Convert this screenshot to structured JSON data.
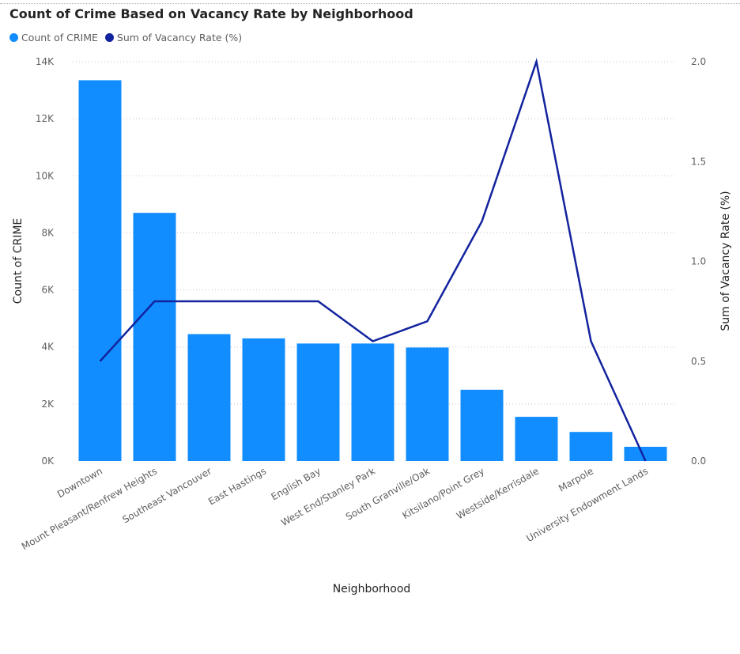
{
  "chart_data": {
    "type": "bar-line-combo",
    "title": "Count of Crime Based on Vacancy Rate by Neighborhood",
    "xlabel": "Neighborhood",
    "ylabel_left": "Count of CRIME",
    "ylabel_right": "Sum of Vacancy Rate (%)",
    "ylim_left": [
      0,
      14000
    ],
    "ylim_right": [
      0,
      2.0
    ],
    "yticks_left": [
      "0K",
      "2K",
      "4K",
      "6K",
      "8K",
      "10K",
      "12K",
      "14K"
    ],
    "yticks_left_values": [
      0,
      2000,
      4000,
      6000,
      8000,
      10000,
      12000,
      14000
    ],
    "yticks_right": [
      "0.0",
      "0.5",
      "1.0",
      "1.5",
      "2.0"
    ],
    "yticks_right_values": [
      0,
      0.5,
      1.0,
      1.5,
      2.0
    ],
    "grid": true,
    "legend_position": "top-left",
    "categories": [
      "Downtown",
      "Mount Pleasant/Renfrew Heights",
      "Southeast Vancouver",
      "East Hastings",
      "English Bay",
      "West End/Stanley Park",
      "South Granville/Oak",
      "Kitsilano/Point Grey",
      "Westside/Kerrisdale",
      "Marpole",
      "University Endowment Lands"
    ],
    "series": [
      {
        "name": "Count of CRIME",
        "type": "bar",
        "axis": "left",
        "color": "#118dff",
        "values": [
          13350,
          8700,
          4450,
          4300,
          4120,
          4120,
          3980,
          2500,
          1550,
          1020,
          500
        ]
      },
      {
        "name": "Sum of Vacancy Rate (%)",
        "type": "line",
        "axis": "right",
        "color": "#12239e",
        "values": [
          0.5,
          0.8,
          0.8,
          0.8,
          0.8,
          0.6,
          0.7,
          1.2,
          2.0,
          0.6,
          0.0
        ]
      }
    ]
  }
}
